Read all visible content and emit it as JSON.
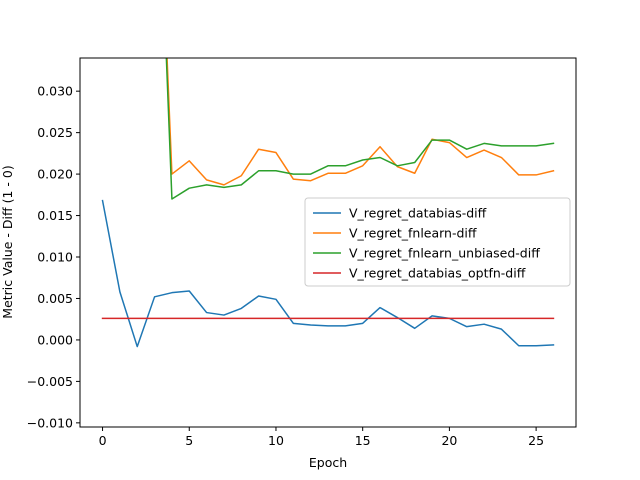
{
  "chart_data": {
    "type": "line",
    "title": "",
    "xlabel": "Epoch",
    "ylabel": "Metric Value - Diff (1 - 0)",
    "xlim": [
      -1.3,
      27.3
    ],
    "ylim": [
      -0.0105,
      0.034
    ],
    "xticks": [
      0,
      5,
      10,
      15,
      20,
      25
    ],
    "yticks": [
      -0.01,
      -0.005,
      0.0,
      0.005,
      0.01,
      0.015,
      0.02,
      0.025,
      0.03
    ],
    "ytick_labels": [
      "−0.010",
      "−0.005",
      "0.000",
      "0.005",
      "0.010",
      "0.015",
      "0.020",
      "0.025",
      "0.030"
    ],
    "grid": false,
    "legend_position": "center-right",
    "x": [
      0,
      1,
      2,
      3,
      4,
      5,
      6,
      7,
      8,
      9,
      10,
      11,
      12,
      13,
      14,
      15,
      16,
      17,
      18,
      19,
      20,
      21,
      22,
      23,
      24,
      25,
      26
    ],
    "series": [
      {
        "name": "V_regret_databias-diff",
        "color": "#1f77b4",
        "values": [
          0.0168,
          0.0058,
          -0.0008,
          0.0052,
          0.0057,
          0.0059,
          0.0033,
          0.003,
          0.0038,
          0.0053,
          0.0049,
          0.002,
          0.0018,
          0.0017,
          0.0017,
          0.002,
          0.0039,
          0.0027,
          0.0014,
          0.0029,
          0.0026,
          0.0016,
          0.0019,
          0.0013,
          -0.0007,
          -0.0007,
          -0.0006
        ]
      },
      {
        "name": "V_regret_fnlearn-diff",
        "color": "#ff7f0e",
        "values": [
          null,
          null,
          null,
          0.07,
          0.02,
          0.0216,
          0.0193,
          0.0187,
          0.0198,
          0.023,
          0.0226,
          0.0194,
          0.0192,
          0.0201,
          0.0201,
          0.021,
          0.0233,
          0.0209,
          0.0201,
          0.0242,
          0.0238,
          0.022,
          0.0229,
          0.022,
          0.0199,
          0.0199,
          0.0204
        ]
      },
      {
        "name": "V_regret_fnlearn_unbiased-diff",
        "color": "#2ca02c",
        "values": [
          null,
          null,
          null,
          0.07,
          0.017,
          0.0183,
          0.0187,
          0.0184,
          0.0187,
          0.0204,
          0.0204,
          0.02,
          0.02,
          0.021,
          0.021,
          0.0217,
          0.022,
          0.021,
          0.0214,
          0.0241,
          0.0241,
          0.023,
          0.0237,
          0.0234,
          0.0234,
          0.0234,
          0.0237
        ]
      },
      {
        "name": "V_regret_databias_optfn-diff",
        "color": "#d62728",
        "values": [
          0.0026,
          0.0026,
          0.0026,
          0.0026,
          0.0026,
          0.0026,
          0.0026,
          0.0026,
          0.0026,
          0.0026,
          0.0026,
          0.0026,
          0.0026,
          0.0026,
          0.0026,
          0.0026,
          0.0026,
          0.0026,
          0.0026,
          0.0026,
          0.0026,
          0.0026,
          0.0026,
          0.0026,
          0.0026,
          0.0026,
          0.0026
        ]
      }
    ]
  }
}
